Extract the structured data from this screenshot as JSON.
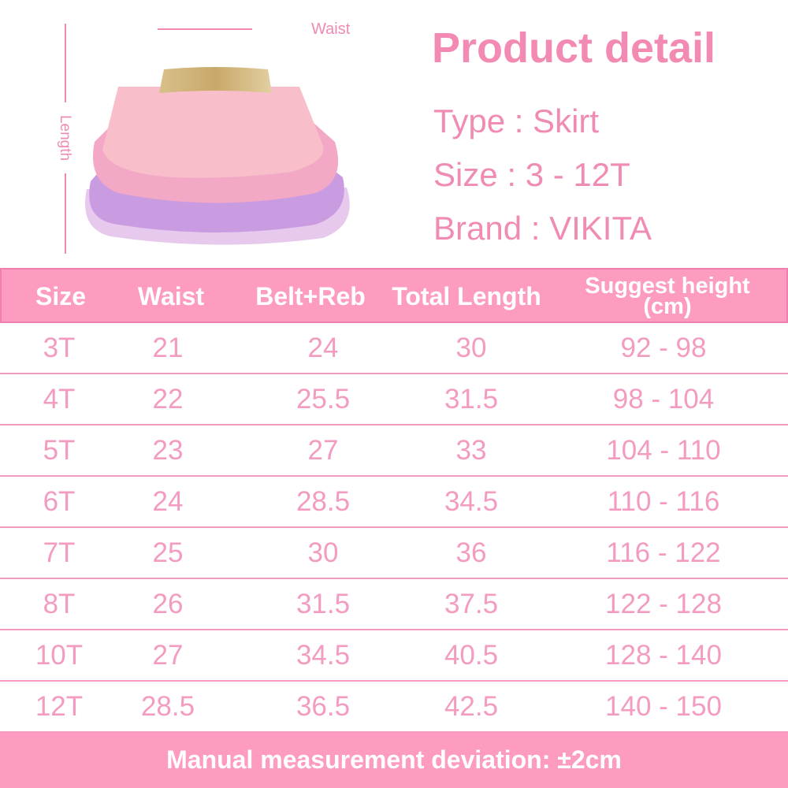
{
  "diagram": {
    "waist_label": "Waist",
    "length_label": "Length"
  },
  "product": {
    "title": "Product detail",
    "type": "Type : Skirt",
    "size": "Size : 3 - 12T",
    "brand": "Brand : VIKITA"
  },
  "table": {
    "headers": [
      "Size",
      "Waist",
      "Belt+Reb",
      "Total Length",
      "Suggest height",
      "(cm)"
    ],
    "rows": [
      [
        "3T",
        "21",
        "24",
        "30",
        "92 - 98"
      ],
      [
        "4T",
        "22",
        "25.5",
        "31.5",
        "98 - 104"
      ],
      [
        "5T",
        "23",
        "27",
        "33",
        "104 - 110"
      ],
      [
        "6T",
        "24",
        "28.5",
        "34.5",
        "110 - 116"
      ],
      [
        "7T",
        "25",
        "30",
        "36",
        "116 - 122"
      ],
      [
        "8T",
        "26",
        "31.5",
        "37.5",
        "122 - 128"
      ],
      [
        "10T",
        "27",
        "34.5",
        "40.5",
        "128 - 140"
      ],
      [
        "12T",
        "28.5",
        "36.5",
        "42.5",
        "140 - 150"
      ]
    ]
  },
  "footer": {
    "note": "Manual measurement deviation: ±2cm"
  },
  "colors": {
    "accent": "#fd9bc0",
    "text_pink": "#f08cb4"
  }
}
